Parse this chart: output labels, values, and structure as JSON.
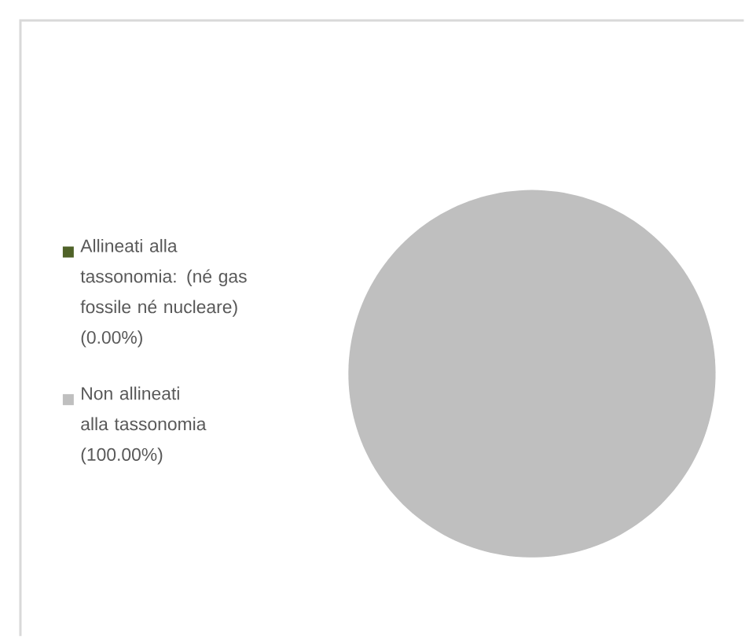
{
  "chart_data": {
    "type": "pie",
    "categories": [
      "Allineati alla tassonomia: (né gas fossile né nucleare) (0.00%)",
      "Non allineati alla tassonomia (100.00%)"
    ],
    "values": [
      0,
      100
    ],
    "colors": [
      "#4f6228",
      "#bfbfbf"
    ],
    "legend": "left"
  }
}
